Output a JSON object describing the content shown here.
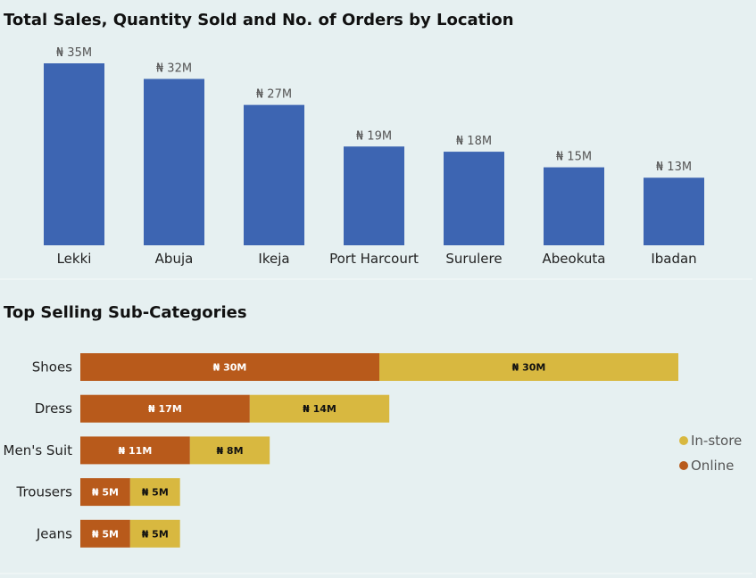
{
  "currency_symbol": "₦",
  "colors": {
    "bar_blue": "#3d65b2",
    "online": "#b85a1b",
    "instore": "#d8b840"
  },
  "chart_data": [
    {
      "type": "bar",
      "title": "Total Sales, Quantity Sold and No. of Orders by Location",
      "categories": [
        "Lekki",
        "Abuja",
        "Ikeja",
        "Port Harcourt",
        "Surulere",
        "Abeokuta",
        "Ibadan"
      ],
      "values": [
        35,
        32,
        27,
        19,
        18,
        15,
        13
      ],
      "data_labels": [
        "₦ 35M",
        "₦ 32M",
        "₦ 27M",
        "₦ 19M",
        "₦ 18M",
        "₦ 15M",
        "₦ 13M"
      ],
      "unit": "M",
      "xlabel": "",
      "ylabel": "",
      "grid": false
    },
    {
      "type": "bar",
      "orientation": "horizontal",
      "stacked": true,
      "title": "Top Selling Sub-Categories",
      "categories": [
        "Shoes",
        "Dress",
        "Men's Suit",
        "Trousers",
        "Jeans"
      ],
      "series": [
        {
          "name": "Online",
          "values": [
            30,
            17,
            11,
            5,
            5
          ],
          "labels": [
            "₦ 30M",
            "₦ 17M",
            "₦ 11M",
            "₦ 5M",
            "₦ 5M"
          ]
        },
        {
          "name": "In-store",
          "values": [
            30,
            14,
            8,
            5,
            5
          ],
          "labels": [
            "₦ 30M",
            "₦ 14M",
            "₦ 8M",
            "₦ 5M",
            "₦ 5M"
          ]
        }
      ],
      "legend": {
        "position": "right",
        "entries": [
          "In-store",
          "Online"
        ]
      },
      "xlabel": "",
      "ylabel": "",
      "grid": false
    }
  ]
}
